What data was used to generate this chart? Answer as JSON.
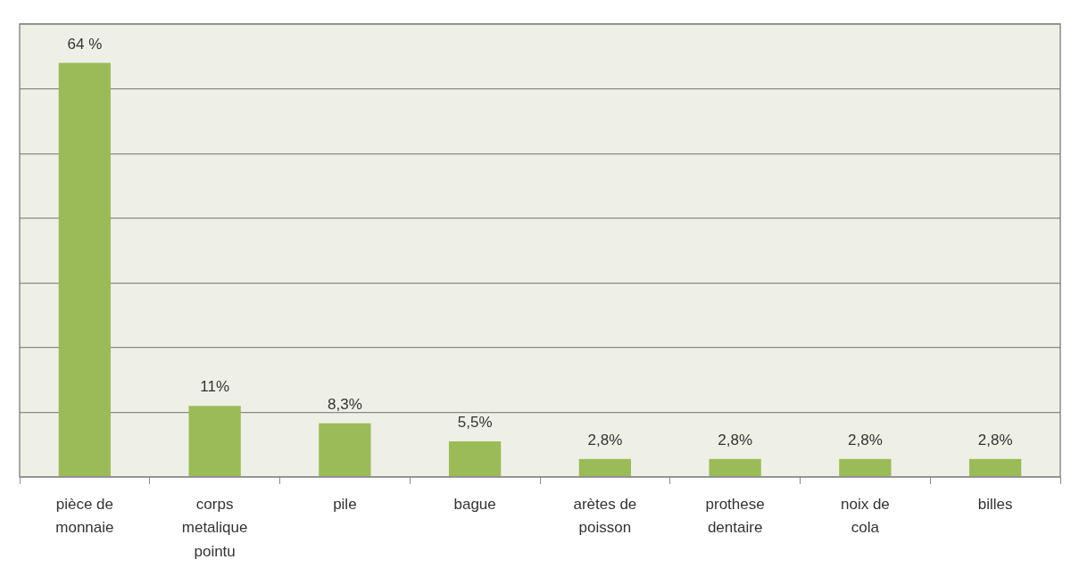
{
  "chart_data": {
    "type": "bar",
    "categories": [
      "pièce de monnaie",
      "corps metalique pointu",
      "pile",
      "bague",
      "arètes de poisson",
      "prothese dentaire",
      "noix de cola",
      "billes"
    ],
    "values": [
      64,
      11,
      8.3,
      5.5,
      2.8,
      2.8,
      2.8,
      2.8
    ],
    "value_labels": [
      "64 %",
      "11%",
      "8,3%",
      "5,5%",
      "2,8%",
      "2,8%",
      "2,8%",
      "2,8%"
    ],
    "color": "#9bbb59",
    "grid": "y",
    "tick_labels": "x",
    "legend": false
  }
}
